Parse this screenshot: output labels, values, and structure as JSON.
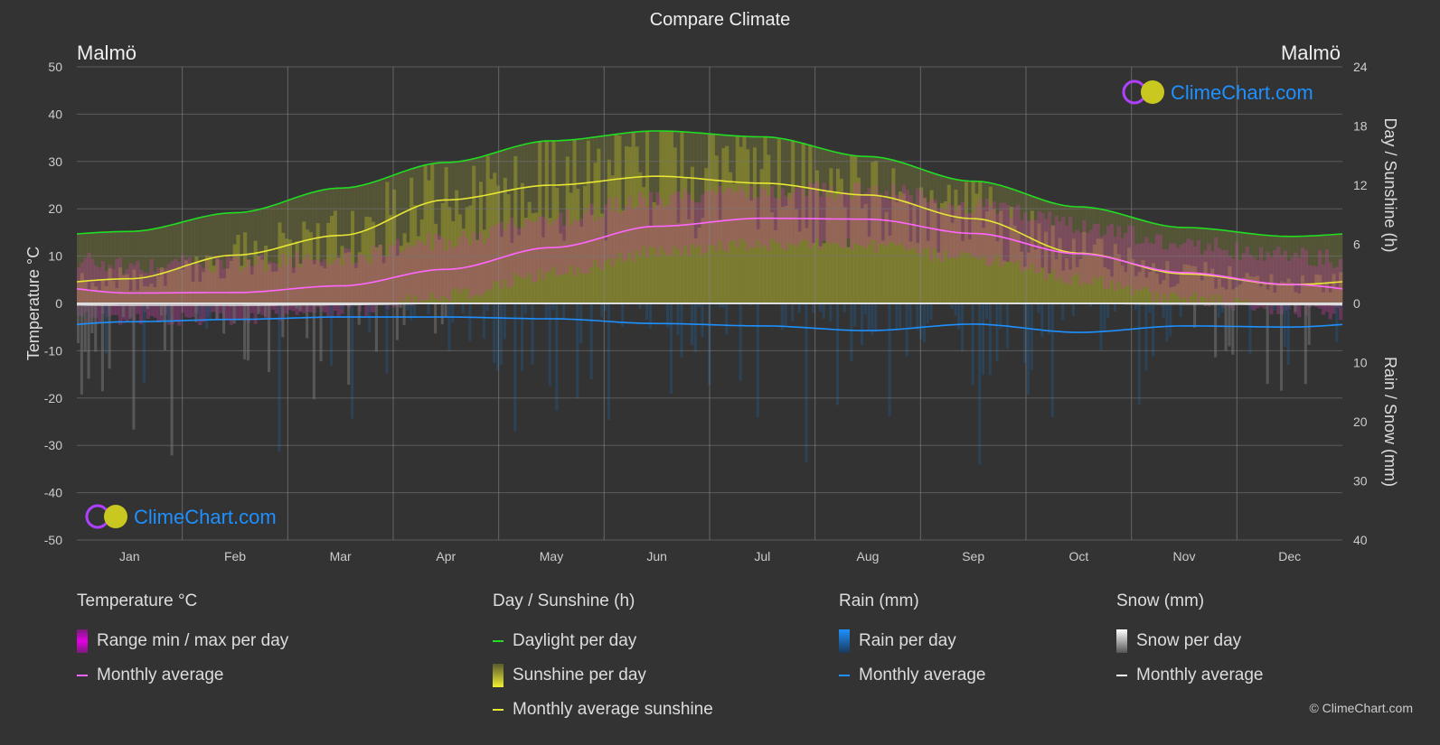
{
  "title": "Compare Climate",
  "city_left": "Malmö",
  "city_right": "Malmö",
  "logo_text": "ClimeChart.com",
  "copyright": "© ClimeChart.com",
  "colors": {
    "bg": "#333333",
    "temp": "#ff66ff",
    "temp_range": "#e600e6",
    "daylight": "#22dd22",
    "sunshine": "#e6e633",
    "sunshine_bar": "#8f8f2a",
    "rain": "#1e90ff",
    "snow": "#ffffff",
    "logo": "#1e90ff"
  },
  "chart_data": {
    "type": "line",
    "title": "Compare Climate",
    "categories": [
      "Jan",
      "Feb",
      "Mar",
      "Apr",
      "May",
      "Jun",
      "Jul",
      "Aug",
      "Sep",
      "Oct",
      "Nov",
      "Dec"
    ],
    "y_left": {
      "label": "Temperature °C",
      "range": [
        -50,
        50
      ],
      "ticks": [
        "50",
        "40",
        "30",
        "20",
        "10",
        "0",
        "-10",
        "-20",
        "-30",
        "-40",
        "-50"
      ]
    },
    "y_right_top": {
      "label": "Day / Sunshine (h)",
      "range": [
        0,
        24
      ],
      "ticks": [
        "24",
        "18",
        "12",
        "6",
        "0"
      ]
    },
    "y_right_bottom": {
      "label": "Rain / Snow (mm)",
      "range": [
        0,
        40
      ],
      "ticks": [
        "0",
        "10",
        "20",
        "30",
        "40"
      ]
    },
    "grid": true,
    "series": [
      {
        "name": "Temperature monthly average",
        "unit": "°C",
        "values": [
          2.2,
          2.3,
          3.7,
          7.2,
          11.8,
          16.3,
          18.0,
          17.8,
          14.8,
          10.5,
          6.5,
          4.0
        ]
      },
      {
        "name": "Daylight per day",
        "unit": "h",
        "values": [
          7.3,
          9.2,
          11.7,
          14.3,
          16.5,
          17.5,
          16.9,
          14.9,
          12.4,
          9.8,
          7.7,
          6.8
        ]
      },
      {
        "name": "Monthly average sunshine",
        "unit": "h",
        "values": [
          2.5,
          4.9,
          6.9,
          10.5,
          12.0,
          12.9,
          12.2,
          11.0,
          8.6,
          5.1,
          3.0,
          1.9
        ]
      },
      {
        "name": "Rain monthly average",
        "unit": "mm",
        "values": [
          3.1,
          2.7,
          2.3,
          2.3,
          2.6,
          3.4,
          3.8,
          4.6,
          3.5,
          4.9,
          3.8,
          4.0
        ]
      },
      {
        "name": "Snow monthly average",
        "unit": "mm",
        "values": [
          0.3,
          0.3,
          0.2,
          0,
          0,
          0,
          0,
          0,
          0,
          0,
          0.1,
          0.2
        ]
      }
    ]
  },
  "legend": {
    "temp": {
      "title": "Temperature °C",
      "items": [
        "Range min / max per day",
        "Monthly average"
      ]
    },
    "sun": {
      "title": "Day / Sunshine (h)",
      "items": [
        "Daylight per day",
        "Sunshine per day",
        "Monthly average sunshine"
      ]
    },
    "rain": {
      "title": "Rain (mm)",
      "items": [
        "Rain per day",
        "Monthly average"
      ]
    },
    "snow": {
      "title": "Snow (mm)",
      "items": [
        "Snow per day",
        "Monthly average"
      ]
    }
  }
}
